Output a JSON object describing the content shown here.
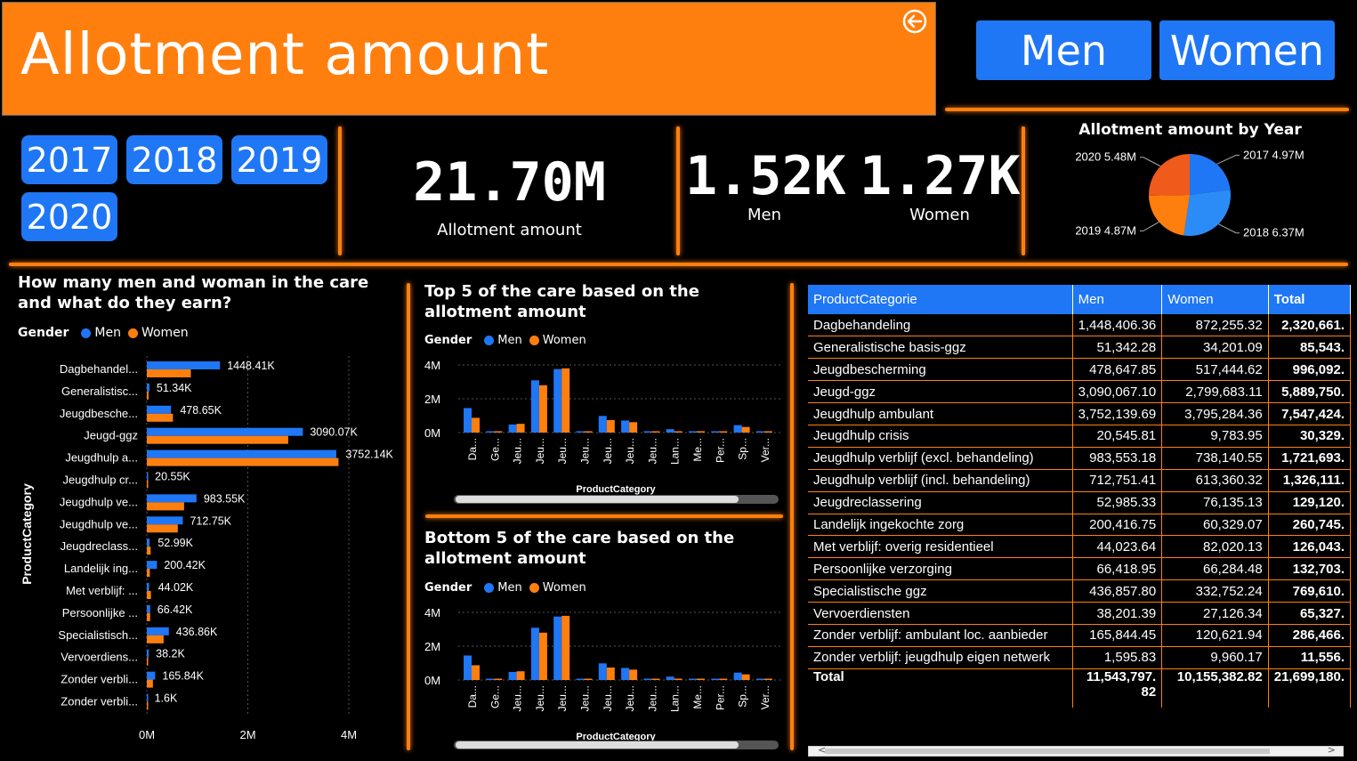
{
  "title": "Allotment amount",
  "gender_buttons": [
    "Men",
    "Women"
  ],
  "years": [
    "2017",
    "2018",
    "2019",
    "2020"
  ],
  "colors": {
    "men": "#1f77f5",
    "women": "#ff7f0e",
    "accent": "#ff7f0e"
  },
  "kpis": {
    "total_value": "21.70M",
    "total_label": "Allotment amount",
    "men_value": "1.52K",
    "men_label": "Men",
    "women_value": "1.27K",
    "women_label": "Women"
  },
  "icons": {
    "back": "back-arrow-icon"
  },
  "chart_data": [
    {
      "type": "pie",
      "title": "Allotment amount by Year",
      "labels": [
        "2017",
        "2018",
        "2019",
        "2020"
      ],
      "values": [
        4.97,
        6.37,
        4.87,
        5.48
      ],
      "data_labels": [
        "2017 4.97M",
        "2018 6.37M",
        "2019 4.87M",
        "2020 5.48M"
      ],
      "colors": [
        "#1f77f5",
        "#2b8cf7",
        "#ff7f0e",
        "#f05a1a"
      ]
    },
    {
      "type": "bar",
      "orientation": "horizontal",
      "title": "How many men and woman in the care and what do they earn?",
      "legend_title": "Gender",
      "ylabel": "ProductCategory",
      "categories": [
        "Dagbehandel...",
        "Generalistisc...",
        "Jeugdbesche...",
        "Jeugd-ggz",
        "Jeugdhulp a...",
        "Jeugdhulp cr...",
        "Jeugdhulp ve...",
        "Jeugdhulp ve...",
        "Jeugdreclass...",
        "Landelijk ing...",
        "Met verblijf: ...",
        "Persoonlijke ...",
        "Specialistisch...",
        "Vervoerdiens...",
        "Zonder verbli...",
        "Zonder verbli..."
      ],
      "data_labels": [
        "1448.41K",
        "51.34K",
        "478.65K",
        "3090.07K",
        "3752.14K",
        "20.55K",
        "983.55K",
        "712.75K",
        "52.99K",
        "200.42K",
        "44.02K",
        "66.42K",
        "436.86K",
        "38.2K",
        "165.84K",
        "1.6K"
      ],
      "series": [
        {
          "name": "Men",
          "values": [
            1448406,
            51342,
            478648,
            3090067,
            3752140,
            20546,
            983553,
            712751,
            52985,
            200417,
            44024,
            66419,
            436858,
            38201,
            165844,
            1596
          ]
        },
        {
          "name": "Women",
          "values": [
            872255,
            34201,
            517445,
            2799683,
            3795284,
            9784,
            738141,
            613360,
            76135,
            60329,
            82020,
            66284,
            332752,
            27126,
            120622,
            9960
          ]
        }
      ],
      "x_ticks": [
        "0M",
        "2M",
        "4M"
      ],
      "xlim": [
        0,
        4400000
      ]
    },
    {
      "type": "bar",
      "title": "Top 5 of the care based on the allotment amount",
      "legend_title": "Gender",
      "xlabel": "ProductCategory",
      "categories": [
        "Da...",
        "Ge...",
        "Jeu...",
        "Jeu...",
        "Jeu...",
        "Jeu...",
        "Jeu...",
        "Jeu...",
        "Jeu...",
        "Lan...",
        "Me...",
        "Per...",
        "Sp...",
        "Ver..."
      ],
      "series": [
        {
          "name": "Men",
          "values": [
            1448406,
            51342,
            478648,
            3090067,
            3752140,
            20546,
            983553,
            712751,
            52985,
            200417,
            44024,
            66419,
            436858,
            38201
          ]
        },
        {
          "name": "Women",
          "values": [
            872255,
            34201,
            517445,
            2799683,
            3795284,
            9784,
            738141,
            613360,
            76135,
            60329,
            82020,
            66284,
            332752,
            27126
          ]
        }
      ],
      "y_ticks": [
        "4M",
        "2M",
        "0M"
      ],
      "ylim": [
        0,
        4000000
      ]
    },
    {
      "type": "bar",
      "title": "Bottom 5 of the care based on the allotment amount",
      "legend_title": "Gender",
      "xlabel": "ProductCategory",
      "categories": [
        "Da...",
        "Ge...",
        "Jeu...",
        "Jeu...",
        "Jeu...",
        "Jeu...",
        "Jeu...",
        "Jeu...",
        "Jeu...",
        "Lan...",
        "Me...",
        "Per...",
        "Sp...",
        "Ver..."
      ],
      "series": [
        {
          "name": "Men",
          "values": [
            1448406,
            51342,
            478648,
            3090067,
            3752140,
            20546,
            983553,
            712751,
            52985,
            200417,
            44024,
            66419,
            436858,
            38201
          ]
        },
        {
          "name": "Women",
          "values": [
            872255,
            34201,
            517445,
            2799683,
            3795284,
            9784,
            738141,
            613360,
            76135,
            60329,
            82020,
            66284,
            332752,
            27126
          ]
        }
      ],
      "y_ticks": [
        "4M",
        "2M",
        "0M"
      ],
      "ylim": [
        0,
        4000000
      ]
    },
    {
      "type": "table",
      "columns": [
        "ProductCategorie",
        "Men",
        "Women",
        "Total"
      ],
      "rows": [
        [
          "Dagbehandeling",
          "1,448,406.36",
          "872,255.32",
          "2,320,661."
        ],
        [
          "Generalistische basis-ggz",
          "51,342.28",
          "34,201.09",
          "85,543."
        ],
        [
          "Jeugdbescherming",
          "478,647.85",
          "517,444.62",
          "996,092."
        ],
        [
          "Jeugd-ggz",
          "3,090,067.10",
          "2,799,683.11",
          "5,889,750."
        ],
        [
          "Jeugdhulp ambulant",
          "3,752,139.69",
          "3,795,284.36",
          "7,547,424."
        ],
        [
          "Jeugdhulp crisis",
          "20,545.81",
          "9,783.95",
          "30,329."
        ],
        [
          "Jeugdhulp verblijf (excl. behandeling)",
          "983,553.18",
          "738,140.55",
          "1,721,693."
        ],
        [
          "Jeugdhulp verblijf (incl. behandeling)",
          "712,751.41",
          "613,360.32",
          "1,326,111."
        ],
        [
          "Jeugdreclassering",
          "52,985.33",
          "76,135.13",
          "129,120."
        ],
        [
          "Landelijk ingekochte zorg",
          "200,416.75",
          "60,329.07",
          "260,745."
        ],
        [
          "Met verblijf: overig residentieel",
          "44,023.64",
          "82,020.13",
          "126,043."
        ],
        [
          "Persoonlijke verzorging",
          "66,418.95",
          "66,284.48",
          "132,703."
        ],
        [
          "Specialistische ggz",
          "436,857.80",
          "332,752.24",
          "769,610."
        ],
        [
          "Vervoerdiensten",
          "38,201.39",
          "27,126.34",
          "65,327."
        ],
        [
          "Zonder verblijf: ambulant loc. aanbieder",
          "165,844.45",
          "120,621.94",
          "286,466."
        ],
        [
          "Zonder verblijf: jeugdhulp eigen netwerk",
          "1,595.83",
          "9,960.17",
          "11,556."
        ]
      ],
      "total_row": [
        "Total",
        "11,543,797.\n82",
        "10,155,382.82",
        "21,699,180."
      ]
    }
  ]
}
